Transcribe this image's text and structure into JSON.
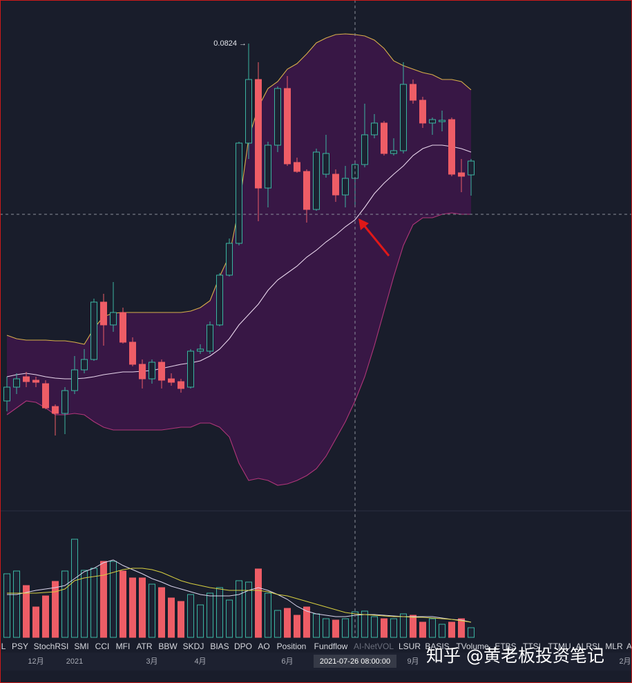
{
  "chart_data": {
    "type": "candlestick",
    "high_label": "0.0824 →",
    "categories": [
      null,
      null,
      null,
      "12月",
      null,
      null,
      null,
      "2021",
      null,
      null,
      null,
      null,
      null,
      null,
      null,
      "3月",
      null,
      null,
      null,
      null,
      "4月",
      null,
      null,
      null,
      null,
      null,
      null,
      null,
      null,
      "6月",
      null,
      null,
      null,
      null,
      null,
      null,
      "2021-07-26 08:00:00",
      null,
      null,
      null,
      null,
      null,
      "9月",
      null,
      null,
      null,
      null,
      null,
      null
    ],
    "extra_x_label": "2月",
    "open": [
      0.0307,
      0.0327,
      0.0342,
      0.0337,
      0.0332,
      0.0299,
      0.0289,
      0.0322,
      0.0352,
      0.0367,
      0.045,
      0.0417,
      0.0435,
      0.0392,
      0.036,
      0.0339,
      0.0363,
      0.0339,
      0.0335,
      0.0327,
      0.0379,
      0.0379,
      0.0417,
      0.0489,
      0.0535,
      0.068,
      0.0772,
      0.0615,
      0.0677,
      0.0759,
      0.0652,
      0.0639,
      0.0584,
      0.0635,
      0.0635,
      0.0605,
      0.0629,
      0.0649,
      0.0692,
      0.0709,
      0.0665,
      0.0669,
      0.0765,
      0.0742,
      0.0709,
      0.0711,
      0.0714,
      0.0637,
      0.0634
    ],
    "high": [
      0.0342,
      0.0347,
      0.0349,
      0.0342,
      0.0337,
      0.0302,
      0.0327,
      0.0372,
      0.0382,
      0.0455,
      0.0462,
      0.0479,
      0.0442,
      0.0399,
      0.0367,
      0.0367,
      0.0367,
      0.0347,
      0.0339,
      0.0382,
      0.0389,
      0.0422,
      0.0492,
      0.0542,
      0.0682,
      0.0824,
      0.0797,
      0.0682,
      0.0762,
      0.0777,
      0.0659,
      0.0642,
      0.0672,
      0.0692,
      0.0642,
      0.0647,
      0.0655,
      0.0737,
      0.0722,
      0.0712,
      0.0687,
      0.0797,
      0.0772,
      0.0747,
      0.0717,
      0.0727,
      0.0717,
      0.0657,
      0.0657
    ],
    "low": [
      0.0292,
      0.0317,
      0.0327,
      0.0327,
      0.0295,
      0.0257,
      0.0259,
      0.0317,
      0.0347,
      0.0365,
      0.0387,
      0.0407,
      0.039,
      0.0357,
      0.0325,
      0.0332,
      0.0325,
      0.0329,
      0.0319,
      0.0325,
      0.0375,
      0.0375,
      0.0415,
      0.0487,
      0.0532,
      0.0657,
      0.0567,
      0.0587,
      0.0667,
      0.0647,
      0.0637,
      0.0565,
      0.0582,
      0.063,
      0.0595,
      0.0587,
      0.0587,
      0.0645,
      0.0687,
      0.0662,
      0.0662,
      0.0665,
      0.0737,
      0.0702,
      0.0692,
      0.0697,
      0.0632,
      0.0609,
      0.0604
    ],
    "close": [
      0.0327,
      0.0339,
      0.0335,
      0.0334,
      0.0297,
      0.0289,
      0.0322,
      0.0352,
      0.0367,
      0.045,
      0.0417,
      0.0435,
      0.0392,
      0.036,
      0.0339,
      0.0363,
      0.0337,
      0.0334,
      0.0325,
      0.0379,
      0.0382,
      0.0417,
      0.0489,
      0.0535,
      0.068,
      0.0772,
      0.0615,
      0.0677,
      0.0759,
      0.065,
      0.0639,
      0.0584,
      0.0667,
      0.0665,
      0.0605,
      0.0629,
      0.0649,
      0.0692,
      0.0709,
      0.0665,
      0.0669,
      0.0765,
      0.0742,
      0.0709,
      0.0714,
      0.0713,
      0.0635,
      0.0632,
      0.0654
    ],
    "up_color": "#3bb5a2",
    "down_color": "#ee5d66",
    "ylim": [
      0.0149,
      0.0887
    ],
    "bands": {
      "fill": "#3a1747",
      "upper": {
        "color": "#d9b04a",
        "values": [
          0.0402,
          0.0397,
          0.0395,
          0.0395,
          0.0395,
          0.0394,
          0.0394,
          0.0392,
          0.0389,
          0.0412,
          0.0429,
          0.0434,
          0.0435,
          0.0435,
          0.0435,
          0.0435,
          0.0435,
          0.0435,
          0.0435,
          0.0437,
          0.0442,
          0.0452,
          0.0487,
          0.0517,
          0.0587,
          0.0687,
          0.0732,
          0.0759,
          0.0769,
          0.0787,
          0.0795,
          0.0809,
          0.0825,
          0.0832,
          0.0837,
          0.0838,
          0.0837,
          0.0835,
          0.0829,
          0.0817,
          0.0799,
          0.0792,
          0.0787,
          0.0782,
          0.0779,
          0.0772,
          0.0772,
          0.0769,
          0.0757
        ]
      },
      "middle": {
        "color": "#e8d6ec",
        "values": [
          0.0342,
          0.0345,
          0.0347,
          0.0345,
          0.0342,
          0.034,
          0.0339,
          0.0339,
          0.034,
          0.0342,
          0.0345,
          0.0347,
          0.0349,
          0.0349,
          0.035,
          0.0351,
          0.0354,
          0.0357,
          0.036,
          0.0362,
          0.0365,
          0.0372,
          0.0382,
          0.0397,
          0.0417,
          0.0432,
          0.0447,
          0.0467,
          0.0482,
          0.0492,
          0.0502,
          0.0515,
          0.0525,
          0.0537,
          0.0547,
          0.0559,
          0.0569,
          0.0587,
          0.0607,
          0.0622,
          0.0635,
          0.0647,
          0.0662,
          0.0672,
          0.0677,
          0.0677,
          0.0675,
          0.0672,
          0.0667
        ]
      },
      "lower": {
        "color": "#b0367a",
        "values": [
          0.0287,
          0.0297,
          0.0307,
          0.0305,
          0.0297,
          0.0287,
          0.0287,
          0.0289,
          0.0287,
          0.0277,
          0.0269,
          0.0265,
          0.0265,
          0.0265,
          0.0265,
          0.0265,
          0.0265,
          0.0267,
          0.0269,
          0.0269,
          0.0275,
          0.0275,
          0.0269,
          0.0255,
          0.0217,
          0.0192,
          0.0195,
          0.0192,
          0.0185,
          0.0187,
          0.0192,
          0.0199,
          0.0209,
          0.0227,
          0.0252,
          0.0277,
          0.0307,
          0.0342,
          0.0387,
          0.0437,
          0.0487,
          0.0532,
          0.0562,
          0.0572,
          0.0572,
          0.0577,
          0.0579,
          0.0577,
          0.0577
        ]
      }
    },
    "volume": {
      "ylim": [
        0,
        180
      ],
      "values": [
        92,
        96,
        75,
        44,
        60,
        81,
        96,
        142,
        97,
        100,
        110,
        110,
        96,
        86,
        86,
        77,
        72,
        57,
        52,
        62,
        47,
        64,
        72,
        54,
        82,
        80,
        99,
        64,
        39,
        42,
        32,
        44,
        34,
        27,
        25,
        27,
        37,
        38,
        30,
        27,
        27,
        34,
        32,
        22,
        27,
        19,
        22,
        27,
        14
      ],
      "ma": [
        {
          "color": "#dcd6ee",
          "values": [
            62,
            62,
            65,
            68,
            70,
            72,
            75,
            85,
            95,
            100,
            108,
            112,
            104,
            98,
            92,
            85,
            80,
            74,
            70,
            66,
            62,
            60,
            60,
            60,
            62,
            68,
            72,
            68,
            62,
            55,
            45,
            38,
            34,
            32,
            30,
            30,
            32,
            33,
            33,
            32,
            31,
            30,
            30,
            30,
            30,
            28,
            26,
            25,
            22
          ]
        },
        {
          "color": "#d8d040",
          "values": [
            64,
            64,
            64,
            64,
            65,
            66,
            70,
            82,
            86,
            88,
            90,
            94,
            98,
            100,
            100,
            98,
            94,
            88,
            82,
            78,
            75,
            72,
            70,
            68,
            68,
            68,
            68,
            66,
            62,
            60,
            56,
            52,
            48,
            44,
            40,
            36,
            34,
            33,
            32,
            31,
            30,
            30,
            29,
            29,
            28,
            27,
            26,
            24,
            22
          ]
        }
      ]
    },
    "tabs": [
      "L",
      "PSY",
      "StochRSI",
      "SMI",
      "CCI",
      "MFI",
      "ATR",
      "BBW",
      "SKDJ",
      "BIAS",
      "DPO",
      "AO",
      "Position",
      "Fundflow",
      "AI-NetVOL",
      "LSUR",
      "BASIS",
      "TVolume",
      "ETBS",
      "TTSI",
      "TTMU",
      "ALRSI",
      "MLR",
      "A"
    ]
  },
  "watermark": "知乎 @黄老板投资笔记"
}
